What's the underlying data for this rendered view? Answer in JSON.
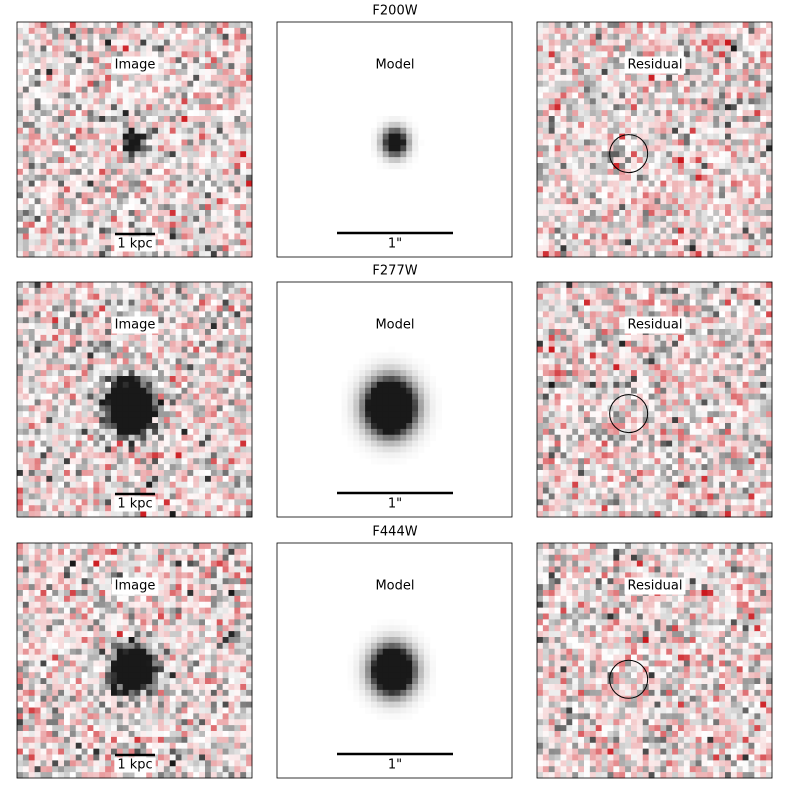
{
  "rows": [
    {
      "title": "F200W",
      "image_label": "Image",
      "model_label": "Model",
      "residual_label": "Residual",
      "image_scalebar": "1 kpc",
      "model_scalebar": "1\""
    },
    {
      "title": "F277W",
      "image_label": "Image",
      "model_label": "Model",
      "residual_label": "Residual",
      "image_scalebar": "1 kpc",
      "model_scalebar": "1\""
    },
    {
      "title": "F444W",
      "image_label": "Image",
      "model_label": "Model",
      "residual_label": "Residual",
      "image_scalebar": "1 kpc",
      "model_scalebar": "1\""
    }
  ]
}
